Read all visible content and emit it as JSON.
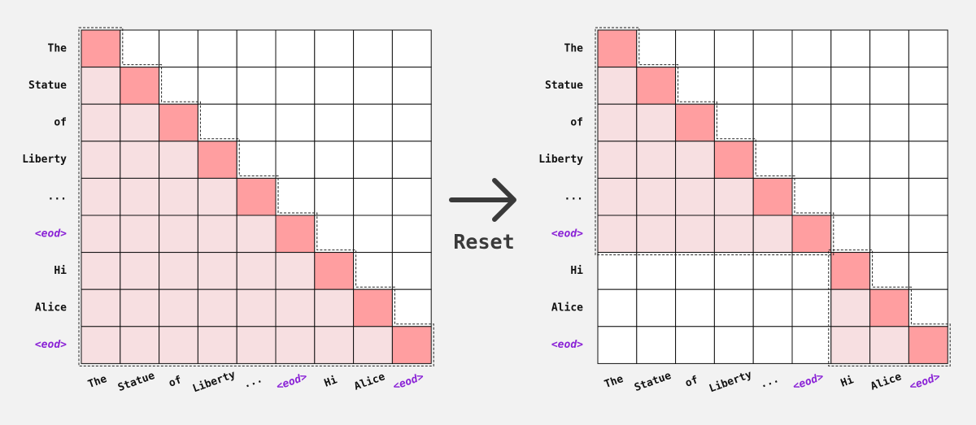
{
  "left": {
    "row_labels": [
      "The",
      "Statue",
      "of",
      "Liberty",
      "...",
      "<eod>",
      "Hi",
      "Alice",
      "<eod>"
    ],
    "col_labels": [
      "The",
      "Statue",
      "of",
      "Liberty",
      "...",
      "<eod>",
      "Hi",
      "Alice",
      "<eod>"
    ]
  },
  "arrow_label": "Reset",
  "right": {
    "row_labels": [
      "The",
      "Statue",
      "of",
      "Liberty",
      "...",
      "<eod>",
      "Hi",
      "Alice",
      "<eod>"
    ],
    "col_labels": [
      "The",
      "Statue",
      "of",
      "Liberty",
      "...",
      "<eod>",
      "Hi",
      "Alice",
      "<eod>"
    ]
  }
}
